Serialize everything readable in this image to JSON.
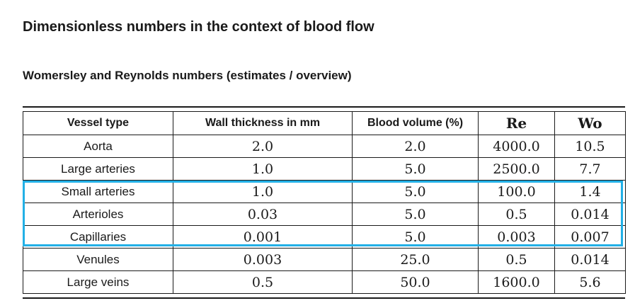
{
  "title": "Dimensionless numbers in the context of blood flow",
  "subtitle": "Womersley and Reynolds numbers (estimates / overview)",
  "highlight_color": "#22b0e6",
  "table": {
    "headers": [
      "Vessel type",
      "Wall thickness in mm",
      "Blood volume (%)",
      "Re",
      "Wo"
    ],
    "rows": [
      {
        "vessel": "Aorta",
        "wall": "2.0",
        "volume": "2.0",
        "re": "4000.0",
        "wo": "10.5"
      },
      {
        "vessel": "Large arteries",
        "wall": "1.0",
        "volume": "5.0",
        "re": "2500.0",
        "wo": "7.7"
      },
      {
        "vessel": "Small arteries",
        "wall": "1.0",
        "volume": "5.0",
        "re": "100.0",
        "wo": "1.4"
      },
      {
        "vessel": "Arterioles",
        "wall": "0.03",
        "volume": "5.0",
        "re": "0.5",
        "wo": "0.014"
      },
      {
        "vessel": "Capillaries",
        "wall": "0.001",
        "volume": "5.0",
        "re": "0.003",
        "wo": "0.007"
      },
      {
        "vessel": "Venules",
        "wall": "0.003",
        "volume": "25.0",
        "re": "0.5",
        "wo": "0.014"
      },
      {
        "vessel": "Large veins",
        "wall": "0.5",
        "volume": "50.0",
        "re": "1600.0",
        "wo": "5.6"
      }
    ]
  }
}
